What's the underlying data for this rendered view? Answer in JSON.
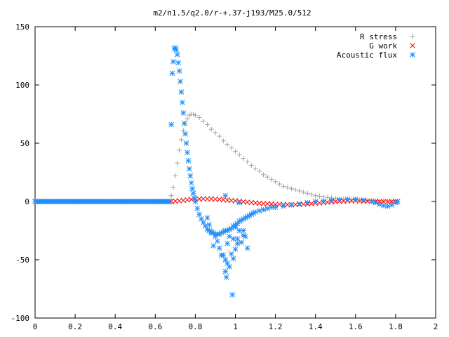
{
  "chart_data": {
    "type": "scatter",
    "title": "m2/n1.5/q2.0/r-+.37-j193/M25.0/512",
    "xlabel": "",
    "ylabel": "",
    "xlim": [
      0,
      2
    ],
    "ylim": [
      -100,
      150
    ],
    "x_ticks": [
      "0",
      "0.2",
      "0.4",
      "0.6",
      "0.8",
      "1",
      "1.2",
      "1.4",
      "1.6",
      "1.8",
      "2"
    ],
    "y_ticks": [
      "150",
      "100",
      "50",
      "0",
      "-50",
      "-100"
    ],
    "x_tick_values": [
      0,
      0.2,
      0.4,
      0.6,
      0.8,
      1.0,
      1.2,
      1.4,
      1.6,
      1.8,
      2.0
    ],
    "y_tick_values": [
      150,
      100,
      50,
      0,
      -50,
      -100
    ],
    "grid": false,
    "legend_position": "top-right",
    "series": [
      {
        "name": "R stress",
        "marker": "plus",
        "color": "#a0a0a0",
        "x": [
          0.68,
          0.69,
          0.7,
          0.71,
          0.72,
          0.73,
          0.74,
          0.75,
          0.76,
          0.77,
          0.78,
          0.79,
          0.8,
          0.82,
          0.84,
          0.86,
          0.88,
          0.9,
          0.92,
          0.94,
          0.96,
          0.98,
          1.0,
          1.02,
          1.04,
          1.06,
          1.08,
          1.1,
          1.12,
          1.14,
          1.16,
          1.18,
          1.2,
          1.22,
          1.24,
          1.26,
          1.28,
          1.3,
          1.32,
          1.34,
          1.36,
          1.38,
          1.4,
          1.42,
          1.44,
          1.46,
          1.48,
          1.5,
          1.52,
          1.54,
          1.56,
          1.58,
          1.6,
          1.62,
          1.64,
          1.66,
          1.68,
          1.7,
          1.72,
          1.74,
          1.76,
          1.78,
          1.8,
          1.81
        ],
        "y": [
          5,
          12,
          22,
          33,
          44,
          53,
          61,
          67,
          71,
          74,
          75,
          75,
          74,
          72,
          69,
          66,
          62,
          59,
          56,
          52,
          49,
          46,
          43,
          40,
          37,
          34,
          31,
          28,
          26,
          23,
          21,
          19,
          17,
          15,
          13,
          12,
          11,
          10,
          9,
          8,
          7,
          6,
          5,
          4.5,
          4,
          3.5,
          3,
          2.6,
          2.3,
          2,
          1.8,
          1.6,
          1.4,
          1.2,
          1.0,
          0.9,
          0.8,
          0.7,
          0.6,
          0.5,
          0.4,
          0.3,
          0.2,
          0.1
        ]
      },
      {
        "name": "G work",
        "marker": "cross",
        "color": "#ff0000",
        "x": [
          0.68,
          0.7,
          0.72,
          0.74,
          0.76,
          0.78,
          0.8,
          0.82,
          0.84,
          0.86,
          0.88,
          0.9,
          0.92,
          0.94,
          0.96,
          0.98,
          1.0,
          1.02,
          1.04,
          1.06,
          1.08,
          1.1,
          1.12,
          1.14,
          1.16,
          1.18,
          1.2,
          1.22,
          1.24,
          1.26,
          1.28,
          1.3,
          1.32,
          1.34,
          1.36,
          1.38,
          1.4,
          1.42,
          1.44,
          1.46,
          1.48,
          1.5,
          1.52,
          1.54,
          1.56,
          1.58,
          1.6,
          1.62,
          1.64,
          1.66,
          1.68,
          1.7,
          1.72,
          1.74,
          1.76,
          1.78,
          1.8,
          1.81
        ],
        "y": [
          0,
          0.3,
          0.6,
          1.0,
          1.4,
          1.8,
          2.0,
          2.2,
          2.3,
          2.3,
          2.2,
          2.0,
          1.8,
          1.5,
          1.2,
          0.9,
          0.6,
          0.2,
          -0.2,
          -0.6,
          -0.9,
          -1.2,
          -1.5,
          -1.8,
          -2.0,
          -2.2,
          -2.4,
          -2.5,
          -2.6,
          -2.7,
          -2.7,
          -2.6,
          -2.5,
          -2.3,
          -2.1,
          -1.8,
          -1.5,
          -1.2,
          -0.9,
          -0.6,
          -0.3,
          0,
          0.2,
          0.4,
          0.5,
          0.6,
          0.6,
          0.5,
          0.4,
          0.3,
          0.2,
          0.1,
          0,
          -0.1,
          -0.2,
          -0.1,
          0,
          0
        ]
      },
      {
        "name": "Acoustic flux",
        "marker": "star",
        "color": "#1e90ff",
        "x": [
          0.68,
          0.685,
          0.69,
          0.695,
          0.7,
          0.705,
          0.71,
          0.715,
          0.72,
          0.725,
          0.73,
          0.735,
          0.74,
          0.745,
          0.75,
          0.755,
          0.76,
          0.765,
          0.77,
          0.775,
          0.78,
          0.785,
          0.79,
          0.795,
          0.8,
          0.81,
          0.82,
          0.83,
          0.84,
          0.85,
          0.86,
          0.87,
          0.88,
          0.89,
          0.9,
          0.91,
          0.92,
          0.93,
          0.94,
          0.95,
          0.96,
          0.97,
          0.98,
          0.99,
          1.0,
          1.01,
          1.02,
          1.03,
          1.04,
          1.05,
          1.06,
          1.07,
          1.08,
          1.09,
          1.1,
          1.12,
          1.14,
          1.16,
          1.18,
          1.2,
          1.24,
          1.28,
          1.32,
          1.36,
          1.4,
          1.44,
          1.48,
          1.52,
          1.56,
          1.6,
          1.64,
          1.68,
          1.7,
          1.72,
          1.74,
          1.76,
          1.78,
          1.8,
          1.81,
          0.86,
          0.87,
          0.88,
          0.89,
          0.9,
          0.91,
          0.92,
          0.93,
          0.95,
          0.96,
          0.97,
          0.99,
          1.0,
          1.02,
          1.03,
          1.04,
          1.05,
          1.06,
          0.94,
          0.95,
          0.955,
          0.96,
          0.97,
          0.98,
          0.99,
          1.0,
          1.01,
          0.985,
          1.01,
          1.04,
          0.95,
          1.02
        ],
        "y": [
          66,
          110,
          120,
          131,
          132,
          130,
          126,
          119,
          112,
          103,
          94,
          85,
          76,
          67,
          58,
          50,
          42,
          35,
          28,
          22,
          16,
          11,
          7,
          3,
          0,
          -6,
          -11,
          -15,
          -18,
          -21,
          -24,
          -25,
          -26,
          -27,
          -28,
          -28,
          -28,
          -27,
          -26,
          -25,
          -25,
          -24,
          -23,
          -21,
          -20,
          -19,
          -17,
          -16,
          -15,
          -14,
          -13,
          -12,
          -11,
          -10,
          -9,
          -8,
          -7,
          -6,
          -5,
          -5,
          -4,
          -3,
          -2,
          -1,
          0,
          0.5,
          1,
          1.5,
          1.8,
          2,
          1.2,
          0,
          -1,
          -2.5,
          -3.5,
          -4,
          -3,
          -1,
          0,
          -14,
          -20,
          -27,
          -38,
          -30,
          -34,
          -40,
          -46,
          -50,
          -36,
          -30,
          -32,
          -22,
          -25,
          -35,
          -29,
          -30,
          -40,
          -46,
          -60,
          -65,
          -53,
          -56,
          -45,
          -49,
          -41,
          -32,
          -80,
          -36,
          -25,
          5,
          -1
        ]
      }
    ]
  }
}
